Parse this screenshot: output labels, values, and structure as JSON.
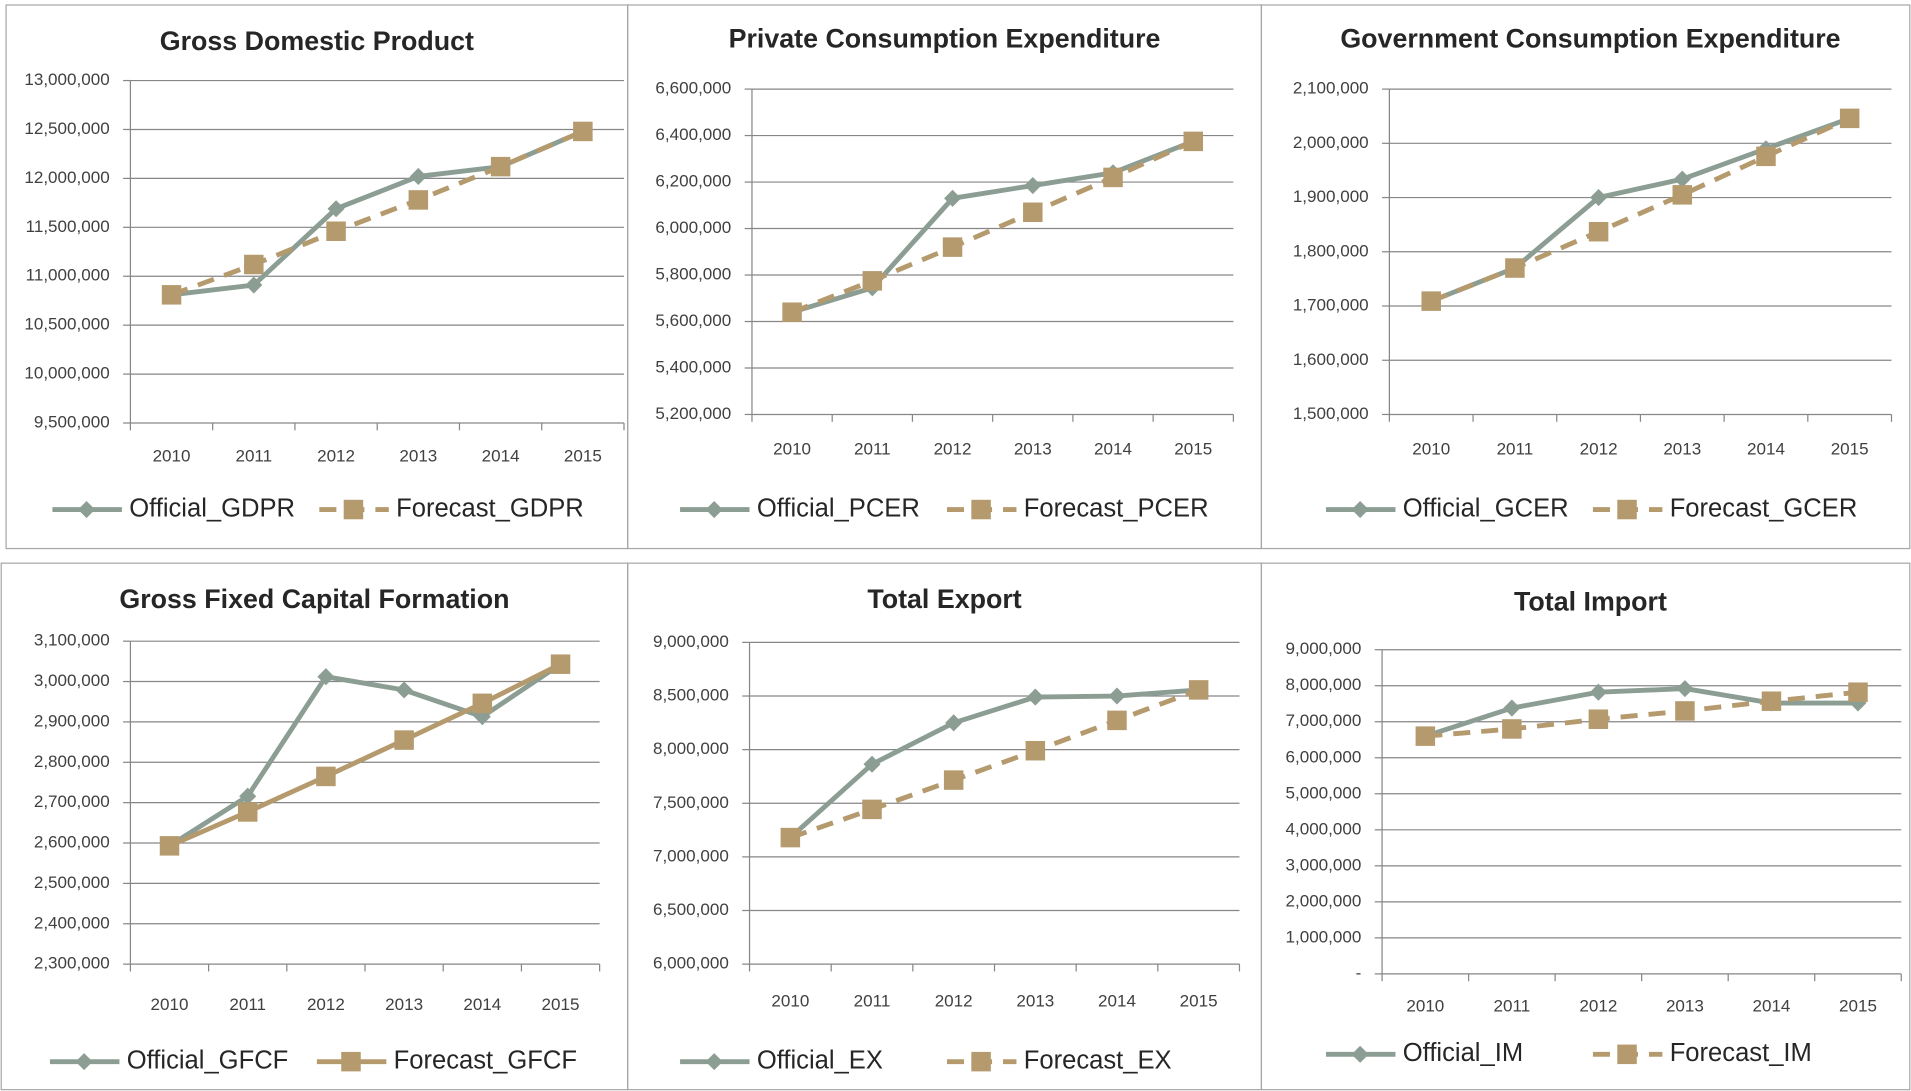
{
  "chart_data": [
    {
      "type": "line",
      "title": "Gross Domestic Product",
      "categories": [
        "2010",
        "2011",
        "2012",
        "2013",
        "2014",
        "2015"
      ],
      "series": [
        {
          "name": "Official_GDPR",
          "color": "#8c9e94",
          "line_style": "solid",
          "marker": "diamond",
          "values": [
            10810000,
            10910000,
            11690000,
            12020000,
            12120000,
            12480000
          ]
        },
        {
          "name": "Forecast_GDPR",
          "color": "#b59a6e",
          "line_style": "dashed",
          "marker": "square",
          "values": [
            10810000,
            11120000,
            11460000,
            11780000,
            12120000,
            12480000
          ]
        }
      ],
      "ylim": [
        9500000,
        13000000
      ],
      "yticks": [
        {
          "value": 9500000,
          "label": "9,500,000"
        },
        {
          "value": 10000000,
          "label": "10,000,000"
        },
        {
          "value": 10500000,
          "label": "10,500,000"
        },
        {
          "value": 11000000,
          "label": "11,000,000"
        },
        {
          "value": 11500000,
          "label": "11,500,000"
        },
        {
          "value": 12000000,
          "label": "12,000,000"
        },
        {
          "value": 12500000,
          "label": "12,500,000"
        },
        {
          "value": 13000000,
          "label": "13,000,000"
        }
      ],
      "grid": true,
      "legend": "bottom"
    },
    {
      "type": "line",
      "title": "Private Consumption Expenditure",
      "categories": [
        "2010",
        "2011",
        "2012",
        "2013",
        "2014",
        "2015"
      ],
      "series": [
        {
          "name": "Official_PCER",
          "color": "#8c9e94",
          "line_style": "solid",
          "marker": "diamond",
          "values": [
            5640000,
            5745000,
            6130000,
            6185000,
            6240000,
            6375000
          ]
        },
        {
          "name": "Forecast_PCER",
          "color": "#b59a6e",
          "line_style": "dashed",
          "marker": "square",
          "values": [
            5640000,
            5775000,
            5920000,
            6070000,
            6220000,
            6375000
          ]
        }
      ],
      "ylim": [
        5200000,
        6600000
      ],
      "yticks": [
        {
          "value": 5200000,
          "label": "5,200,000"
        },
        {
          "value": 5400000,
          "label": "5,400,000"
        },
        {
          "value": 5600000,
          "label": "5,600,000"
        },
        {
          "value": 5800000,
          "label": "5,800,000"
        },
        {
          "value": 6000000,
          "label": "6,000,000"
        },
        {
          "value": 6200000,
          "label": "6,200,000"
        },
        {
          "value": 6400000,
          "label": "6,400,000"
        },
        {
          "value": 6600000,
          "label": "6,600,000"
        }
      ],
      "grid": true,
      "legend": "bottom"
    },
    {
      "type": "line",
      "title": "Government Consumption Expenditure",
      "categories": [
        "2010",
        "2011",
        "2012",
        "2013",
        "2014",
        "2015"
      ],
      "series": [
        {
          "name": "Official_GCER",
          "color": "#8c9e94",
          "line_style": "solid",
          "marker": "diamond",
          "values": [
            1709000,
            1770000,
            1900000,
            1934000,
            1990000,
            2046000
          ]
        },
        {
          "name": "Forecast_GCER",
          "color": "#b59a6e",
          "line_style": "dashed",
          "marker": "square",
          "values": [
            1709000,
            1770000,
            1837000,
            1905000,
            1976000,
            2046000
          ]
        }
      ],
      "ylim": [
        1500000,
        2100000
      ],
      "yticks": [
        {
          "value": 1500000,
          "label": "1,500,000"
        },
        {
          "value": 1600000,
          "label": "1,600,000"
        },
        {
          "value": 1700000,
          "label": "1,700,000"
        },
        {
          "value": 1800000,
          "label": "1,800,000"
        },
        {
          "value": 1900000,
          "label": "1,900,000"
        },
        {
          "value": 2000000,
          "label": "2,000,000"
        },
        {
          "value": 2100000,
          "label": "2,100,000"
        }
      ],
      "grid": true,
      "legend": "bottom"
    },
    {
      "type": "line",
      "title": "Gross Fixed Capital Formation",
      "categories": [
        "2010",
        "2011",
        "2012",
        "2013",
        "2014",
        "2015"
      ],
      "series": [
        {
          "name": "Official_GFCF",
          "color": "#8c9e94",
          "line_style": "solid",
          "marker": "diamond",
          "values": [
            2593000,
            2716000,
            3012000,
            2979000,
            2913000,
            3043000
          ]
        },
        {
          "name": "Forecast_GFCF",
          "color": "#b59a6e",
          "line_style": "solid",
          "marker": "square",
          "values": [
            2593000,
            2677000,
            2765000,
            2855000,
            2946000,
            3043000
          ]
        }
      ],
      "ylim": [
        2300000,
        3100000
      ],
      "yticks": [
        {
          "value": 2300000,
          "label": "2,300,000"
        },
        {
          "value": 2400000,
          "label": "2,400,000"
        },
        {
          "value": 2500000,
          "label": "2,500,000"
        },
        {
          "value": 2600000,
          "label": "2,600,000"
        },
        {
          "value": 2700000,
          "label": "2,700,000"
        },
        {
          "value": 2800000,
          "label": "2,800,000"
        },
        {
          "value": 2900000,
          "label": "2,900,000"
        },
        {
          "value": 3000000,
          "label": "3,000,000"
        },
        {
          "value": 3100000,
          "label": "3,100,000"
        }
      ],
      "grid": true,
      "legend": "bottom"
    },
    {
      "type": "line",
      "title": "Total Export",
      "categories": [
        "2010",
        "2011",
        "2012",
        "2013",
        "2014",
        "2015"
      ],
      "series": [
        {
          "name": "Official_EX",
          "color": "#8c9e94",
          "line_style": "solid",
          "marker": "diamond",
          "values": [
            7180000,
            7864000,
            8250000,
            8490000,
            8500000,
            8557000
          ]
        },
        {
          "name": "Forecast_EX",
          "color": "#b59a6e",
          "line_style": "dashed",
          "marker": "square",
          "values": [
            7180000,
            7443000,
            7716000,
            7990000,
            8273000,
            8557000
          ]
        }
      ],
      "ylim": [
        6000000,
        9000000
      ],
      "yticks": [
        {
          "value": 6000000,
          "label": "6,000,000"
        },
        {
          "value": 6500000,
          "label": "6,500,000"
        },
        {
          "value": 7000000,
          "label": "7,000,000"
        },
        {
          "value": 7500000,
          "label": "7,500,000"
        },
        {
          "value": 8000000,
          "label": "8,000,000"
        },
        {
          "value": 8500000,
          "label": "8,500,000"
        },
        {
          "value": 9000000,
          "label": "9,000,000"
        }
      ],
      "grid": true,
      "legend": "bottom"
    },
    {
      "type": "line",
      "title": "Total Import",
      "categories": [
        "2010",
        "2011",
        "2012",
        "2013",
        "2014",
        "2015"
      ],
      "series": [
        {
          "name": "Official_IM",
          "color": "#8c9e94",
          "line_style": "solid",
          "marker": "diamond",
          "values": [
            6600000,
            7380000,
            7820000,
            7920000,
            7520000,
            7520000
          ]
        },
        {
          "name": "Forecast_IM",
          "color": "#b59a6e",
          "line_style": "dashed",
          "marker": "square",
          "values": [
            6600000,
            6800000,
            7070000,
            7300000,
            7570000,
            7820000
          ]
        }
      ],
      "ylim": [
        0,
        9000000
      ],
      "yticks": [
        {
          "value": 0,
          "label": "-"
        },
        {
          "value": 1000000,
          "label": "1,000,000"
        },
        {
          "value": 2000000,
          "label": "2,000,000"
        },
        {
          "value": 3000000,
          "label": "3,000,000"
        },
        {
          "value": 4000000,
          "label": "4,000,000"
        },
        {
          "value": 5000000,
          "label": "5,000,000"
        },
        {
          "value": 6000000,
          "label": "6,000,000"
        },
        {
          "value": 7000000,
          "label": "7,000,000"
        },
        {
          "value": 8000000,
          "label": "8,000,000"
        },
        {
          "value": 9000000,
          "label": "9,000,000"
        }
      ],
      "grid": true,
      "legend": "bottom"
    }
  ]
}
